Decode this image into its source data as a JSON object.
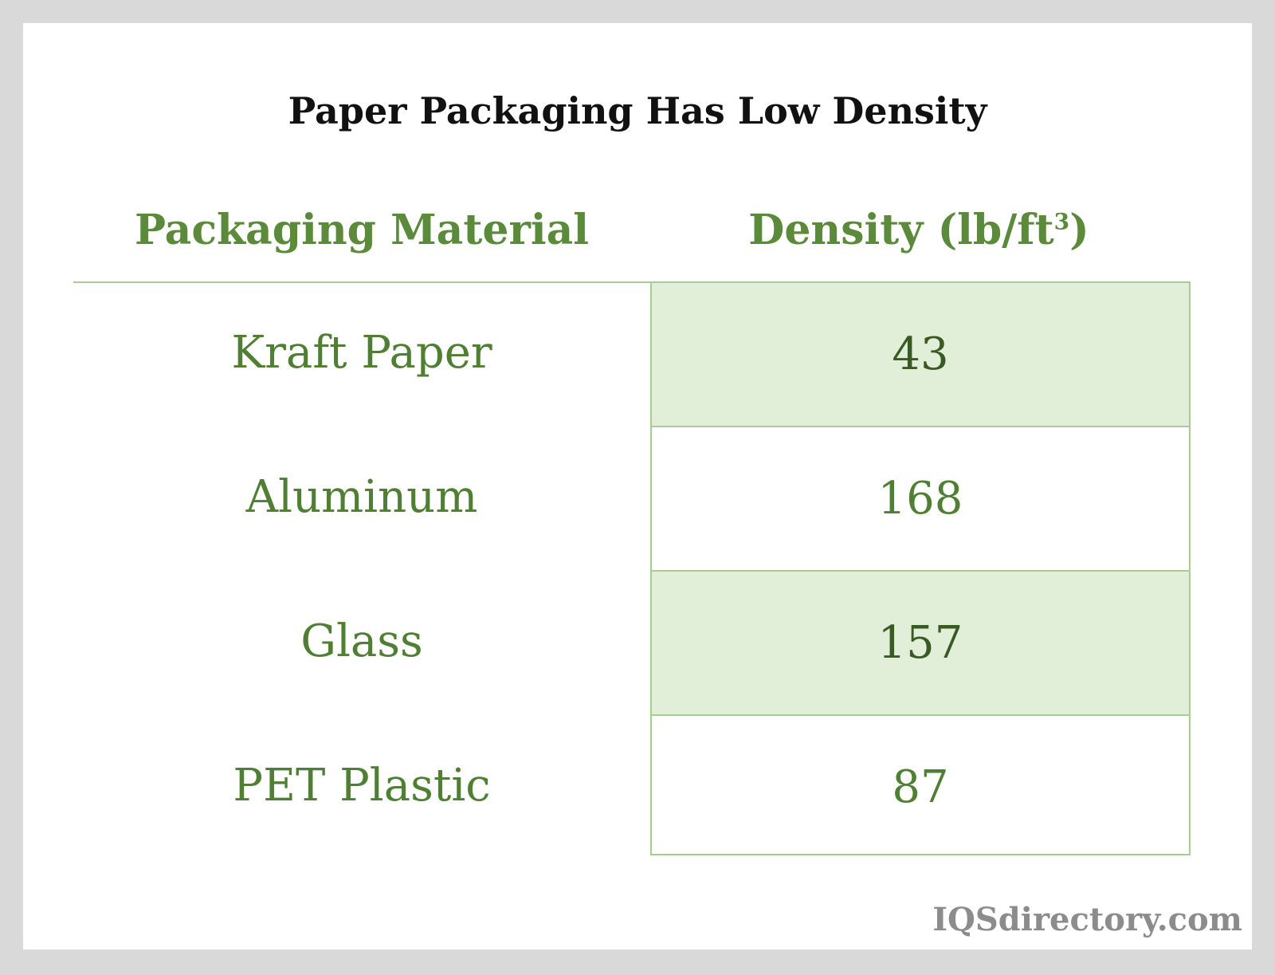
{
  "title": "Paper Packaging Has Low Density",
  "watermark": "IQSdirectory.com",
  "colors": {
    "header_text": "#5a8a3a",
    "body_text": "#4f7f33",
    "shade": "#e1eed8",
    "border": "#a9cc94",
    "background": "#d9d9d9"
  },
  "chart_data": {
    "type": "table",
    "title": "Paper Packaging Has Low Density",
    "columns": [
      "Packaging Material",
      "Density (lb/ft",
      "3",
      ")"
    ],
    "header_material": "Packaging Material",
    "header_density": "Density (lb/ft",
    "header_density_sup": "3",
    "header_density_close": ")",
    "rows": [
      {
        "material": "Kraft Paper",
        "density": "43"
      },
      {
        "material": "Aluminum",
        "density": "168"
      },
      {
        "material": "Glass",
        "density": "157"
      },
      {
        "material": "PET Plastic",
        "density": "87"
      }
    ]
  }
}
